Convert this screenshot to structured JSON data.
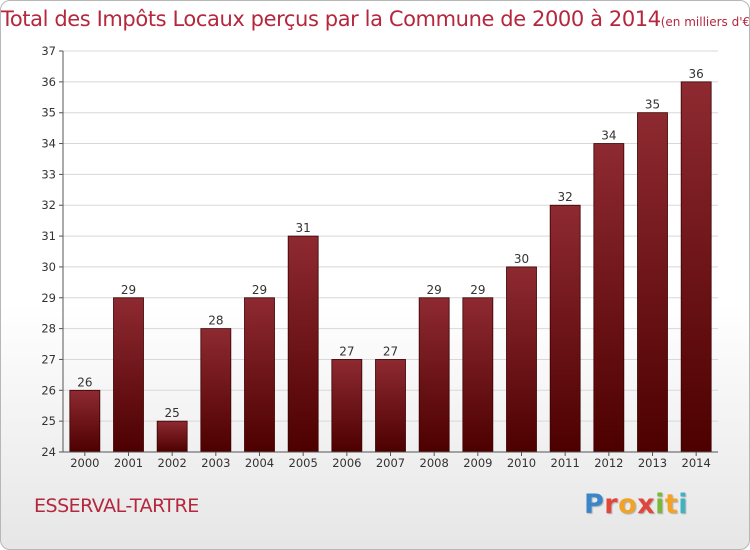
{
  "title": "Total des Impôts Locaux perçus par la Commune de 2000 à 2014",
  "subtitle": "(en milliers d'€)",
  "commune": "ESSERVAL-TARTRE",
  "logo": {
    "letters": [
      "P",
      "r",
      "o",
      "x",
      "i",
      "t",
      "i"
    ]
  },
  "colors": {
    "title": "#b5273d",
    "bar_top": "#8e2a31",
    "bar_bottom": "#4d0000",
    "grid": "#d8d8d8",
    "axis_text": "#333333"
  },
  "chart_data": {
    "type": "bar",
    "categories": [
      "2000",
      "2001",
      "2002",
      "2003",
      "2004",
      "2005",
      "2006",
      "2007",
      "2008",
      "2009",
      "2010",
      "2011",
      "2012",
      "2013",
      "2014"
    ],
    "values": [
      26,
      29,
      25,
      28,
      29,
      31,
      27,
      27,
      29,
      29,
      30,
      32,
      34,
      35,
      36
    ],
    "data_labels": [
      "26",
      "29",
      "25",
      "28",
      "29",
      "31",
      "27",
      "27",
      "29",
      "29",
      "30",
      "32",
      "34",
      "35",
      "36"
    ],
    "ylim": [
      24,
      37
    ],
    "yticks": [
      "24",
      "25",
      "26",
      "27",
      "28",
      "29",
      "30",
      "31",
      "32",
      "33",
      "34",
      "35",
      "36",
      "37"
    ],
    "grid": true,
    "xlabel": "",
    "ylabel": ""
  }
}
